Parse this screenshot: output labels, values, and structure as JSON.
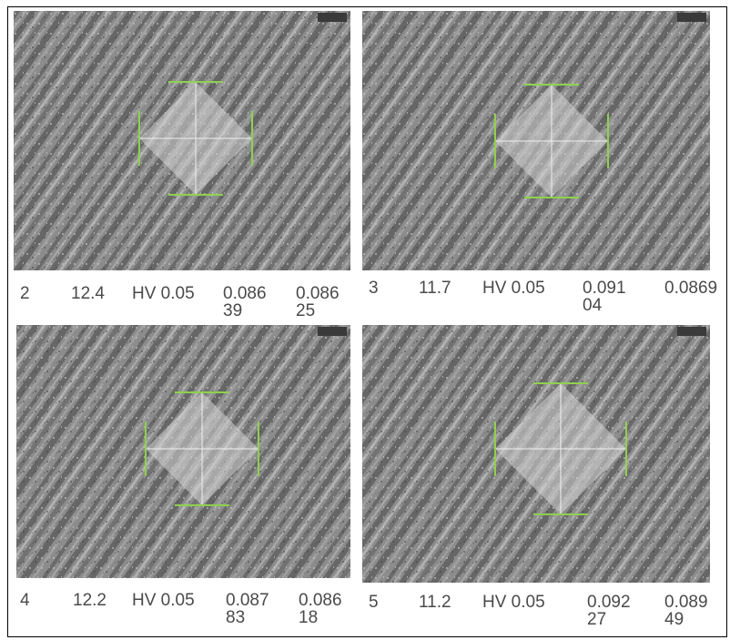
{
  "panels": [
    {
      "cells": [
        "2",
        "12.4",
        "HV 0.05",
        "0.08639",
        "0.08625"
      ]
    },
    {
      "cells": [
        "3",
        "11.7",
        "HV 0.05",
        "0.09104",
        "0.0869"
      ]
    },
    {
      "cells": [
        "4",
        "12.2",
        "HV 0.05",
        "0.08783",
        "0.08618"
      ]
    },
    {
      "cells": [
        "5",
        "11.2",
        "HV 0.05",
        "0.09227",
        "0.08949"
      ]
    }
  ]
}
